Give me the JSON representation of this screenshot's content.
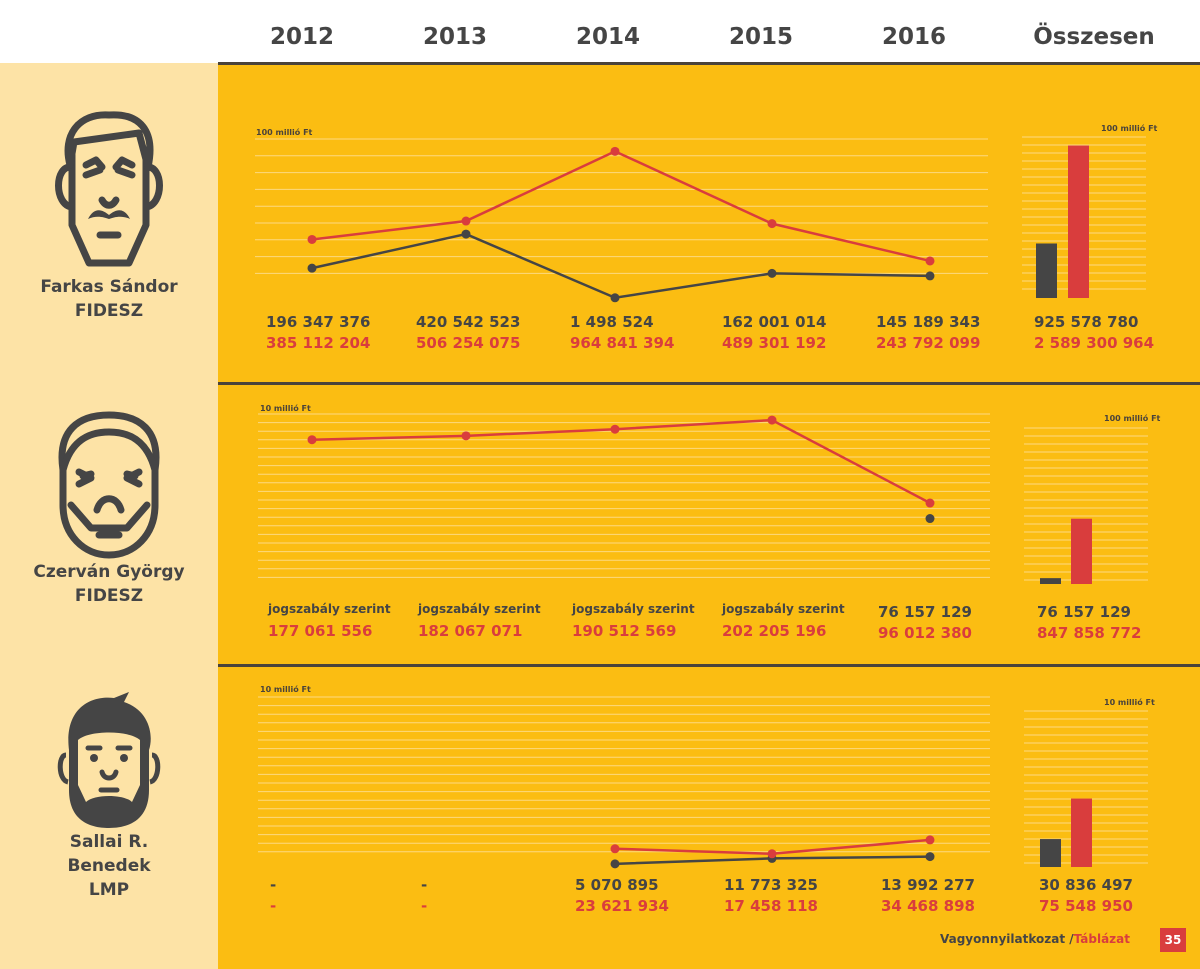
{
  "header": {
    "columns": [
      "2012",
      "2013",
      "2014",
      "2015",
      "2016",
      "Összesen"
    ]
  },
  "colors": {
    "background": "#fbbd12",
    "left_panel": "#fde3a6",
    "dark_series": "#454545",
    "red_series": "#d93d3d",
    "grid": "#fde3a6"
  },
  "people": [
    {
      "name": "Farkas Sándor",
      "party": "FIDESZ",
      "line_scale_label": "100 millió Ft",
      "total_scale_label": "100 millió Ft",
      "dark_values": [
        "196 347 376",
        "420 542 523",
        "1 498 524",
        "162 001 014",
        "145 189 343"
      ],
      "red_values": [
        "385 112 204",
        "506 254 075",
        "964 841 394",
        "489 301 192",
        "243 792 099"
      ],
      "dark_total": "925 578 780",
      "red_total": "2 589 300 964"
    },
    {
      "name": "Czerván György",
      "party": "FIDESZ",
      "line_scale_label": "10 millió Ft",
      "total_scale_label": "100 millió Ft",
      "dark_values": [
        "jogszabály szerint",
        "jogszabály szerint",
        "jogszabály szerint",
        "jogszabály szerint",
        "76 157 129"
      ],
      "red_values": [
        "177 061 556",
        "182 067 071",
        "190 512 569",
        "202 205 196",
        "96 012 380"
      ],
      "dark_total": "76 157 129",
      "red_total": "847 858 772"
    },
    {
      "name_line1": "Sallai R.",
      "name_line2": "Benedek",
      "party": "LMP",
      "line_scale_label": "10 millió Ft",
      "total_scale_label": "10 millió Ft",
      "dark_values": [
        "-",
        "-",
        "5 070 895",
        "11 773 325",
        "13 992 277"
      ],
      "red_values": [
        "-",
        "-",
        "23 621 934",
        "17 458 118",
        "34 468 898"
      ],
      "dark_total": "30 836 497",
      "red_total": "75 548 950"
    }
  ],
  "footer": {
    "title": "Vagyonnyilatkozat",
    "separator": "/",
    "subtitle": "Táblázat",
    "page_number": "35"
  },
  "chart_data": [
    {
      "type": "line",
      "title": "Farkas Sándor – FIDESZ",
      "categories": [
        "2012",
        "2013",
        "2014",
        "2015",
        "2016"
      ],
      "unit_label": "100 millió Ft",
      "ylim": [
        0,
        1000000000
      ],
      "grid": true,
      "series": [
        {
          "name": "dark",
          "values": [
            196347376,
            420542523,
            1498524,
            162001014,
            145189343
          ]
        },
        {
          "name": "red",
          "values": [
            385112204,
            506254075,
            964841394,
            489301192,
            243792099
          ]
        }
      ],
      "totals": {
        "type": "bar",
        "unit_label": "100 millió Ft",
        "ylim": [
          0,
          2700000000
        ],
        "dark": 925578780,
        "red": 2589300964
      }
    },
    {
      "type": "line",
      "title": "Czerván György – FIDESZ",
      "categories": [
        "2012",
        "2013",
        "2014",
        "2015",
        "2016"
      ],
      "unit_label": "10 millió Ft",
      "ylim": [
        0,
        210000000
      ],
      "grid": true,
      "series": [
        {
          "name": "dark",
          "values": [
            null,
            null,
            null,
            null,
            76157129
          ]
        },
        {
          "name": "red",
          "values": [
            177061556,
            182067071,
            190512569,
            202205196,
            96012380
          ]
        }
      ],
      "totals": {
        "type": "bar",
        "unit_label": "100 millió Ft",
        "ylim": [
          0,
          2000000000
        ],
        "dark": 76157129,
        "red": 847858772
      }
    },
    {
      "type": "line",
      "title": "Sallai R. Benedek – LMP",
      "categories": [
        "2012",
        "2013",
        "2014",
        "2015",
        "2016"
      ],
      "unit_label": "10 millió Ft",
      "ylim": [
        0,
        210000000
      ],
      "grid": true,
      "series": [
        {
          "name": "dark",
          "values": [
            null,
            null,
            5070895,
            11773325,
            13992277
          ]
        },
        {
          "name": "red",
          "values": [
            null,
            null,
            23621934,
            17458118,
            34468898
          ]
        }
      ],
      "totals": {
        "type": "bar",
        "unit_label": "10 millió Ft",
        "ylim": [
          0,
          170000000
        ],
        "dark": 30836497,
        "red": 75548950
      }
    }
  ]
}
